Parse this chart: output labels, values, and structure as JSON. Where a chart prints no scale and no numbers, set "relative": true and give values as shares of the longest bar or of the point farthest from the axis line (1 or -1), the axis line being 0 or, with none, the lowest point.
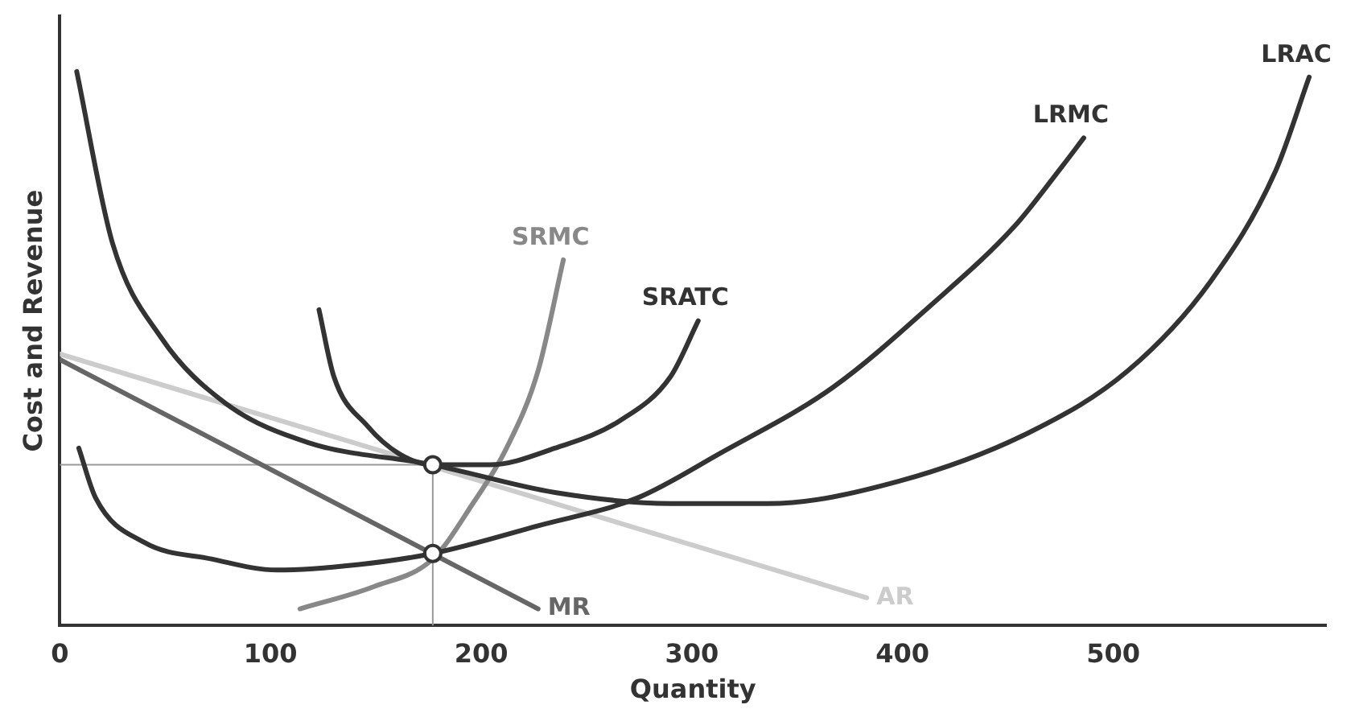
{
  "chart_data": {
    "type": "line",
    "relative": true,
    "xlabel": "Quantity",
    "ylabel": "Cost and Revenue",
    "xlim": [
      0,
      601
    ],
    "xticks": [
      0,
      100,
      200,
      300,
      400,
      500
    ],
    "tick_labels": "x",
    "grid": false,
    "legend": false,
    "line_style": "solid",
    "series": [
      {
        "name": "LRAC",
        "color": "#333333",
        "x": [
          8,
          25,
          48,
          79,
          118,
          177,
          235,
          290,
          336,
          398,
          461,
          507,
          546,
          577,
          593
        ],
        "values": [
          1.0,
          0.69,
          0.52,
          0.4,
          0.33,
          0.29,
          0.24,
          0.22,
          0.22,
          0.26,
          0.35,
          0.46,
          0.62,
          0.82,
          0.99
        ]
      },
      {
        "name": "LRMC",
        "color": "#333333",
        "x": [
          9,
          17,
          40,
          72,
          103,
          142,
          177,
          227,
          274,
          313,
          367,
          414,
          453,
          476,
          486
        ],
        "values": [
          0.32,
          0.23,
          0.15,
          0.12,
          0.1,
          0.11,
          0.13,
          0.18,
          0.23,
          0.31,
          0.43,
          0.58,
          0.72,
          0.83,
          0.88
        ]
      },
      {
        "name": "SRATC",
        "color": "#333333",
        "x": [
          123,
          130,
          146,
          161,
          177,
          204,
          235,
          266,
          290,
          303
        ],
        "values": [
          0.57,
          0.45,
          0.36,
          0.31,
          0.29,
          0.29,
          0.32,
          0.37,
          0.45,
          0.55
        ]
      },
      {
        "name": "SRMC",
        "color": "#888888",
        "x": [
          114,
          149,
          177,
          196,
          212,
          227,
          239
        ],
        "values": [
          0.03,
          0.07,
          0.12,
          0.22,
          0.32,
          0.46,
          0.66
        ]
      },
      {
        "name": "MR",
        "color": "#666666",
        "x": [
          0,
          227
        ],
        "values": [
          0.48,
          0.03
        ]
      },
      {
        "name": "AR",
        "color": "#cccccc",
        "x": [
          0,
          383
        ],
        "values": [
          0.49,
          0.05
        ]
      },
      {
        "color": "#999999",
        "x": [
          0,
          177,
          177
        ],
        "values": [
          0.29,
          0.29,
          0
        ]
      },
      {
        "type": "scatter",
        "marker": "circle",
        "color": "#333333",
        "x": [
          177,
          177
        ],
        "values": [
          0.29,
          0.13
        ]
      }
    ]
  }
}
